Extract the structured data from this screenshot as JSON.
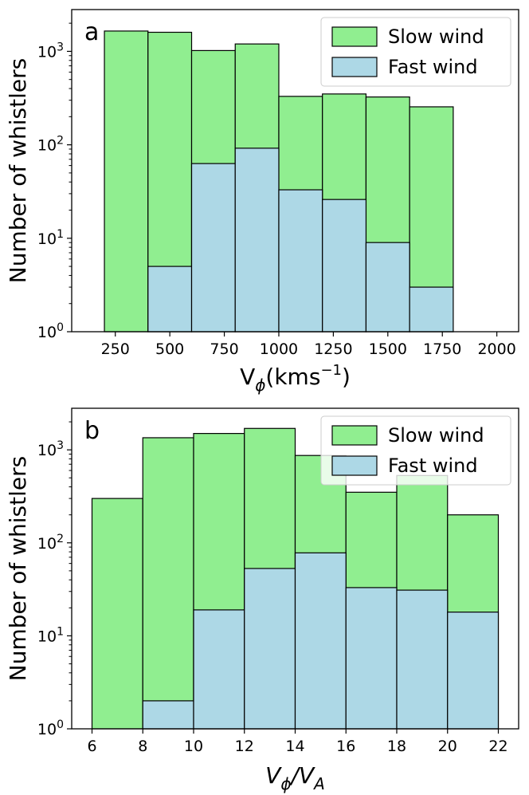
{
  "chart_data": [
    {
      "type": "bar",
      "panel_label": "a",
      "xlabel": "V",
      "xlabel_sub": "ϕ",
      "xlabel_tail": "(kms",
      "xlabel_sup": "−1",
      "xlabel_close": ")",
      "ylabel": "Number of whistlers",
      "xlim": [
        50,
        2100
      ],
      "ylim": [
        1,
        2800
      ],
      "yscale": "log",
      "xticks": [
        250,
        500,
        750,
        1000,
        1250,
        1500,
        1750,
        2000
      ],
      "yticks": [
        {
          "base": "10",
          "exp": "0",
          "value": 1
        },
        {
          "base": "10",
          "exp": "1",
          "value": 10
        },
        {
          "base": "10",
          "exp": "2",
          "value": 100
        },
        {
          "base": "10",
          "exp": "3",
          "value": 1000
        }
      ],
      "bin_edges": [
        200,
        400,
        600,
        800,
        1000,
        1200,
        1400,
        1600,
        1800
      ],
      "series": [
        {
          "name": "Slow wind",
          "color": "#90ee90",
          "values": [
            1650,
            1600,
            1020,
            1200,
            330,
            350,
            325,
            255
          ]
        },
        {
          "name": "Fast wind",
          "color": "#add8e6",
          "values": [
            0,
            5,
            63,
            92,
            33,
            26,
            9,
            3
          ]
        }
      ],
      "legend_position": "upper right"
    },
    {
      "type": "bar",
      "panel_label": "b",
      "xlabel": "V",
      "xlabel_sub": "ϕ",
      "xlabel_tail": "/V",
      "xlabel_sub2": "A",
      "ylabel": "Number of whistlers",
      "xlim": [
        5.2,
        22.8
      ],
      "ylim": [
        1,
        2800
      ],
      "yscale": "log",
      "xticks": [
        6,
        8,
        10,
        12,
        14,
        16,
        18,
        20,
        22
      ],
      "yticks": [
        {
          "base": "10",
          "exp": "0",
          "value": 1
        },
        {
          "base": "10",
          "exp": "1",
          "value": 10
        },
        {
          "base": "10",
          "exp": "2",
          "value": 100
        },
        {
          "base": "10",
          "exp": "3",
          "value": 1000
        }
      ],
      "bin_edges": [
        6,
        8,
        10,
        12,
        14,
        16,
        18,
        20,
        22
      ],
      "series": [
        {
          "name": "Slow wind",
          "color": "#90ee90",
          "values": [
            300,
            1350,
            1500,
            1700,
            870,
            350,
            530,
            200
          ]
        },
        {
          "name": "Fast wind",
          "color": "#add8e6",
          "values": [
            0,
            2,
            19,
            53,
            78,
            33,
            31,
            18
          ]
        }
      ],
      "legend_position": "upper right"
    }
  ]
}
